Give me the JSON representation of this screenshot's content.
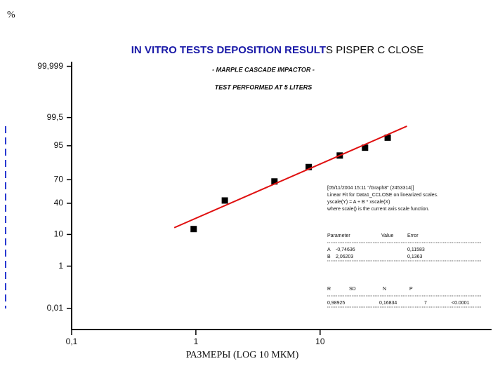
{
  "chart_data": {
    "type": "scatter",
    "corner_label": "%",
    "title_parts": [
      "IN VITRO TESTS DEPOSITION RESULT",
      "S PISPER C CLOSE"
    ],
    "title_colors": [
      "#1a1aa8",
      "#111111"
    ],
    "subtitle": "- MARPLE CASCADE IMPACTOR -",
    "subtitle2": "TEST PERFORMED AT 5 LITERS",
    "subtitle2_color": "#e01010",
    "xlabel": "РАЗМЕРЫ (LOG 10 МКМ)",
    "xscale": "log",
    "yscale": "probability",
    "xlim": [
      0.1,
      240
    ],
    "ylim": [
      0.0005,
      99.9995
    ],
    "xticks": [
      {
        "value": 0.1,
        "label": "0,1"
      },
      1,
      10
    ],
    "yticks": [
      {
        "value": 99.999,
        "label": "99,999"
      },
      {
        "value": 99.5,
        "label": "99,5"
      },
      95,
      70,
      40,
      10,
      1,
      {
        "value": 0.01,
        "label": "0,01"
      }
    ],
    "series": [
      {
        "kind": "points",
        "color": "#000000",
        "x": [
          0.96,
          1.71,
          4.29,
          8.1,
          14.4,
          23,
          35
        ],
        "values": [
          13.5,
          43.6,
          68,
          82.7,
          90.7,
          94.3,
          97.2
        ]
      },
      {
        "kind": "fit",
        "color": "#e01010",
        "x": [
          0.67,
          50
        ],
        "values": [
          14.5,
          98.9
        ]
      }
    ],
    "annotation": {
      "lines": [
        "[05/11/2004 15:11 \"/Graph8\" (2453314)]",
        "Linear Fit for Data1_CCLOSE on linearized scales.",
        "yscale(Y) = A + B * xscale(X)",
        "where scale() is the current axis scale function."
      ],
      "params": {
        "header": [
          "Parameter",
          "Value",
          "Error"
        ],
        "rows": [
          [
            "A",
            "-0,74636",
            "0,11583"
          ],
          [
            "B",
            "2,06203",
            "0,1363"
          ]
        ]
      },
      "stats": {
        "header": [
          "R",
          "SD",
          "N",
          "P"
        ],
        "rows": [
          [
            "0,98925",
            "0,16834",
            "7",
            "<0.0001"
          ]
        ]
      }
    }
  }
}
